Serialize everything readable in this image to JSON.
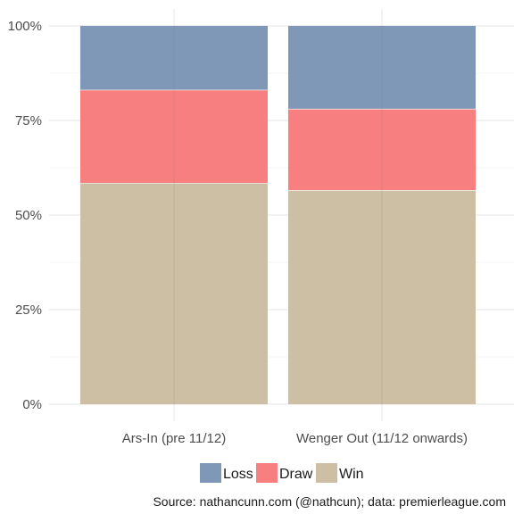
{
  "chart_data": {
    "type": "bar",
    "stacked": true,
    "categories": [
      "Ars-In (pre 11/12)",
      "Wenger Out (11/12 onwards)"
    ],
    "series": [
      {
        "name": "Win",
        "values": [
          58.5,
          56.6
        ]
      },
      {
        "name": "Draw",
        "values": [
          24.6,
          21.5
        ]
      },
      {
        "name": "Loss",
        "values": [
          16.9,
          21.9
        ]
      }
    ],
    "yticks": [
      "0%",
      "25%",
      "50%",
      "75%",
      "100%"
    ],
    "ylim": [
      0,
      100
    ],
    "grid": true,
    "legend": {
      "position": "bottom",
      "order": [
        "Loss",
        "Draw",
        "Win"
      ]
    },
    "title": "",
    "xlabel": "",
    "ylabel": "",
    "colors": {
      "Loss": "#7f98b8",
      "Draw": "#f77f80",
      "Win": "#cdbfa3"
    }
  },
  "caption": "Source: nathancunn.com (@nathcun); data: premierleague.com"
}
